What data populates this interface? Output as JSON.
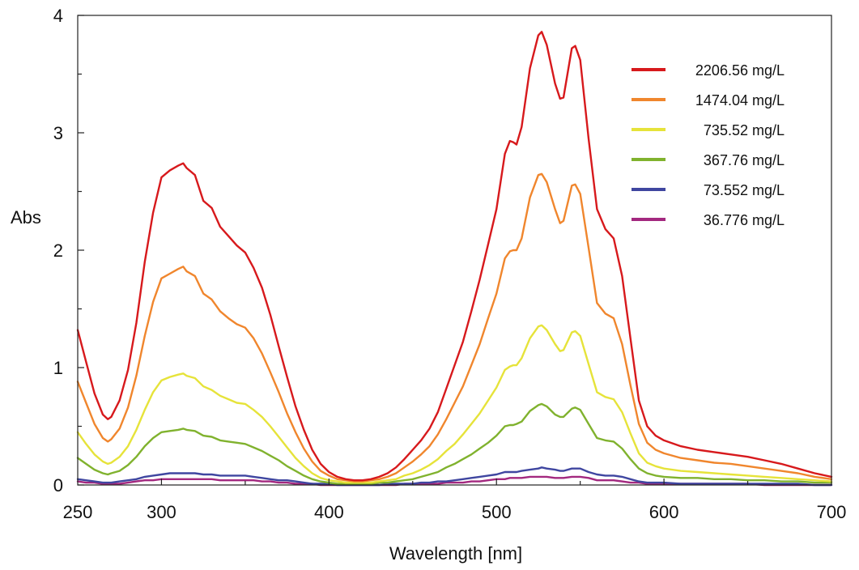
{
  "chart_data": {
    "type": "line",
    "title": "",
    "xlabel": "Wavelength [nm]",
    "ylabel": "Abs",
    "xlim": [
      250,
      700
    ],
    "ylim": [
      0,
      4
    ],
    "xticks": [
      250,
      300,
      400,
      500,
      600,
      700
    ],
    "xtick_labels": [
      "250",
      "300",
      "400",
      "500",
      "600",
      "700"
    ],
    "yticks": [
      0,
      1,
      2,
      3,
      4
    ],
    "ytick_labels": [
      "0",
      "1",
      "2",
      "3",
      "4"
    ],
    "grid": false,
    "legend_position": "top-right",
    "x": [
      250,
      255,
      260,
      265,
      268,
      270,
      275,
      280,
      285,
      290,
      295,
      300,
      305,
      310,
      313,
      315,
      320,
      325,
      330,
      335,
      340,
      345,
      350,
      355,
      360,
      365,
      370,
      375,
      380,
      385,
      390,
      395,
      400,
      405,
      410,
      415,
      420,
      425,
      430,
      435,
      440,
      445,
      450,
      455,
      460,
      465,
      470,
      475,
      480,
      485,
      490,
      495,
      500,
      505,
      508,
      510,
      512,
      515,
      520,
      525,
      527,
      530,
      535,
      538,
      540,
      545,
      547,
      550,
      555,
      560,
      565,
      570,
      575,
      580,
      585,
      590,
      595,
      600,
      610,
      620,
      630,
      640,
      650,
      660,
      670,
      680,
      690,
      700
    ],
    "series": [
      {
        "name": "2206.56 mg/L",
        "color": "#d7191c",
        "values": [
          1.32,
          1.05,
          0.78,
          0.6,
          0.56,
          0.58,
          0.72,
          0.98,
          1.38,
          1.9,
          2.32,
          2.62,
          2.68,
          2.72,
          2.74,
          2.7,
          2.64,
          2.42,
          2.36,
          2.2,
          2.12,
          2.04,
          1.98,
          1.85,
          1.68,
          1.45,
          1.18,
          0.92,
          0.67,
          0.47,
          0.3,
          0.18,
          0.11,
          0.07,
          0.05,
          0.04,
          0.04,
          0.05,
          0.07,
          0.1,
          0.15,
          0.22,
          0.3,
          0.38,
          0.48,
          0.62,
          0.82,
          1.02,
          1.22,
          1.48,
          1.75,
          2.05,
          2.35,
          2.82,
          2.93,
          2.92,
          2.9,
          3.05,
          3.55,
          3.83,
          3.86,
          3.75,
          3.42,
          3.29,
          3.3,
          3.72,
          3.74,
          3.62,
          2.95,
          2.35,
          2.18,
          2.1,
          1.78,
          1.25,
          0.72,
          0.5,
          0.42,
          0.38,
          0.33,
          0.3,
          0.28,
          0.26,
          0.24,
          0.21,
          0.18,
          0.14,
          0.1,
          0.07
        ]
      },
      {
        "name": "1474.04 mg/L",
        "color": "#f0862d",
        "values": [
          0.88,
          0.7,
          0.52,
          0.4,
          0.37,
          0.39,
          0.48,
          0.66,
          0.93,
          1.27,
          1.56,
          1.76,
          1.8,
          1.84,
          1.86,
          1.82,
          1.78,
          1.63,
          1.58,
          1.48,
          1.42,
          1.37,
          1.34,
          1.25,
          1.12,
          0.96,
          0.79,
          0.61,
          0.45,
          0.31,
          0.2,
          0.12,
          0.08,
          0.05,
          0.04,
          0.03,
          0.03,
          0.04,
          0.05,
          0.07,
          0.1,
          0.15,
          0.2,
          0.26,
          0.33,
          0.43,
          0.56,
          0.7,
          0.84,
          1.02,
          1.2,
          1.42,
          1.63,
          1.93,
          1.99,
          2.0,
          2.0,
          2.1,
          2.45,
          2.64,
          2.65,
          2.58,
          2.35,
          2.23,
          2.25,
          2.55,
          2.56,
          2.48,
          2.02,
          1.55,
          1.46,
          1.42,
          1.2,
          0.85,
          0.52,
          0.36,
          0.3,
          0.27,
          0.23,
          0.21,
          0.19,
          0.18,
          0.16,
          0.14,
          0.12,
          0.1,
          0.07,
          0.05
        ]
      },
      {
        "name": "735.52 mg/L",
        "color": "#e6e33a",
        "values": [
          0.45,
          0.35,
          0.26,
          0.2,
          0.18,
          0.19,
          0.24,
          0.33,
          0.47,
          0.64,
          0.79,
          0.89,
          0.92,
          0.94,
          0.95,
          0.93,
          0.91,
          0.84,
          0.81,
          0.76,
          0.73,
          0.7,
          0.69,
          0.64,
          0.58,
          0.5,
          0.41,
          0.32,
          0.23,
          0.16,
          0.1,
          0.06,
          0.04,
          0.03,
          0.02,
          0.02,
          0.02,
          0.02,
          0.03,
          0.04,
          0.05,
          0.08,
          0.1,
          0.13,
          0.17,
          0.22,
          0.29,
          0.35,
          0.43,
          0.52,
          0.61,
          0.72,
          0.83,
          0.98,
          1.01,
          1.02,
          1.02,
          1.08,
          1.25,
          1.35,
          1.36,
          1.32,
          1.2,
          1.14,
          1.15,
          1.3,
          1.31,
          1.27,
          1.03,
          0.79,
          0.75,
          0.73,
          0.62,
          0.44,
          0.27,
          0.19,
          0.16,
          0.14,
          0.12,
          0.11,
          0.1,
          0.09,
          0.08,
          0.07,
          0.06,
          0.05,
          0.04,
          0.03
        ]
      },
      {
        "name": "367.76 mg/L",
        "color": "#80b22e",
        "values": [
          0.23,
          0.18,
          0.13,
          0.1,
          0.09,
          0.1,
          0.12,
          0.17,
          0.24,
          0.33,
          0.4,
          0.45,
          0.46,
          0.47,
          0.48,
          0.47,
          0.46,
          0.42,
          0.41,
          0.38,
          0.37,
          0.36,
          0.35,
          0.32,
          0.29,
          0.25,
          0.21,
          0.16,
          0.12,
          0.08,
          0.05,
          0.03,
          0.02,
          0.01,
          0.01,
          0.01,
          0.01,
          0.01,
          0.02,
          0.02,
          0.03,
          0.04,
          0.05,
          0.07,
          0.09,
          0.11,
          0.15,
          0.18,
          0.22,
          0.26,
          0.31,
          0.36,
          0.42,
          0.5,
          0.51,
          0.51,
          0.52,
          0.54,
          0.63,
          0.68,
          0.69,
          0.67,
          0.6,
          0.58,
          0.58,
          0.65,
          0.66,
          0.64,
          0.52,
          0.4,
          0.38,
          0.37,
          0.31,
          0.22,
          0.14,
          0.1,
          0.08,
          0.07,
          0.06,
          0.06,
          0.05,
          0.05,
          0.04,
          0.04,
          0.03,
          0.03,
          0.02,
          0.02
        ]
      },
      {
        "name": "73.552 mg/L",
        "color": "#3f46a0",
        "values": [
          0.05,
          0.04,
          0.03,
          0.02,
          0.02,
          0.02,
          0.03,
          0.04,
          0.05,
          0.07,
          0.08,
          0.09,
          0.1,
          0.1,
          0.1,
          0.1,
          0.1,
          0.09,
          0.09,
          0.08,
          0.08,
          0.08,
          0.08,
          0.07,
          0.06,
          0.05,
          0.04,
          0.04,
          0.03,
          0.02,
          0.01,
          0.01,
          0.01,
          0.0,
          0.0,
          0.0,
          0.0,
          0.0,
          0.0,
          0.01,
          0.01,
          0.01,
          0.01,
          0.02,
          0.02,
          0.03,
          0.03,
          0.04,
          0.05,
          0.06,
          0.07,
          0.08,
          0.09,
          0.11,
          0.11,
          0.11,
          0.11,
          0.12,
          0.13,
          0.14,
          0.15,
          0.14,
          0.13,
          0.12,
          0.12,
          0.14,
          0.14,
          0.14,
          0.11,
          0.09,
          0.08,
          0.08,
          0.07,
          0.05,
          0.03,
          0.02,
          0.02,
          0.02,
          0.01,
          0.01,
          0.01,
          0.01,
          0.01,
          0.01,
          0.01,
          0.01,
          0.0,
          0.0
        ]
      },
      {
        "name": "36.776 mg/L",
        "color": "#a3287f",
        "values": [
          0.03,
          0.02,
          0.02,
          0.01,
          0.01,
          0.01,
          0.01,
          0.02,
          0.03,
          0.04,
          0.04,
          0.05,
          0.05,
          0.05,
          0.05,
          0.05,
          0.05,
          0.05,
          0.05,
          0.04,
          0.04,
          0.04,
          0.04,
          0.04,
          0.03,
          0.03,
          0.02,
          0.02,
          0.01,
          0.01,
          0.01,
          0.0,
          0.0,
          0.0,
          0.0,
          0.0,
          0.0,
          0.0,
          0.0,
          0.0,
          0.0,
          0.01,
          0.01,
          0.01,
          0.01,
          0.01,
          0.02,
          0.02,
          0.02,
          0.03,
          0.03,
          0.04,
          0.05,
          0.05,
          0.06,
          0.06,
          0.06,
          0.06,
          0.07,
          0.07,
          0.07,
          0.07,
          0.06,
          0.06,
          0.06,
          0.07,
          0.07,
          0.07,
          0.06,
          0.04,
          0.04,
          0.04,
          0.03,
          0.02,
          0.02,
          0.01,
          0.01,
          0.01,
          0.01,
          0.01,
          0.01,
          0.01,
          0.01,
          0.0,
          0.0,
          0.0,
          0.0,
          0.0
        ]
      }
    ]
  }
}
